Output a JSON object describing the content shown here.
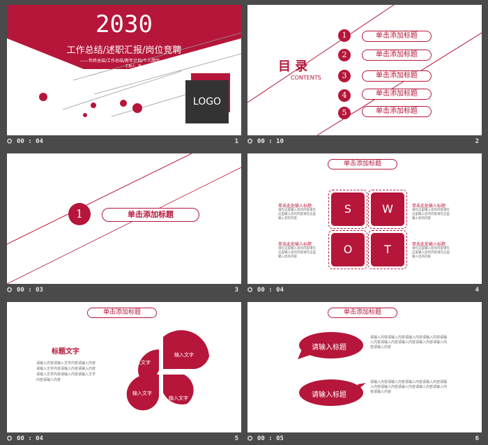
{
  "slides": [
    {
      "number": "1",
      "duration": "00 : 04",
      "year": "2030",
      "title": "工作总结/述职汇报/岗位竞聘",
      "subtitle": "——年终总结/工作总结/新年计划/个人简历——",
      "reporter": "汇报人：第一PPT",
      "logo": "LOGO"
    },
    {
      "number": "2",
      "duration": "00 : 10",
      "heading": "目 录",
      "heading_en": "CONTENTS",
      "items": [
        {
          "num": "1",
          "label": "单击添加标题"
        },
        {
          "num": "2",
          "label": "单击添加标题"
        },
        {
          "num": "3",
          "label": "单击添加标题"
        },
        {
          "num": "4",
          "label": "单击添加标题"
        },
        {
          "num": "5",
          "label": "单击添加标题"
        }
      ]
    },
    {
      "number": "3",
      "duration": "00 : 03",
      "section_num": "1",
      "section_title": "单击添加标题"
    },
    {
      "number": "4",
      "duration": "00 : 04",
      "title": "单击添加标题",
      "letters": [
        "S",
        "W",
        "O",
        "T"
      ],
      "blocks": [
        {
          "head": "单击此处输入标题",
          "body": "请在这里输入您的内容请在这里输入您的内容请在这里输入您的内容"
        },
        {
          "head": "单击此处输入标题",
          "body": "请在这里输入您的内容请在这里输入您的内容请在这里输入您的内容"
        },
        {
          "head": "单击此处输入标题",
          "body": "请在这里输入您的内容请在这里输入您的内容请在这里输入您的内容"
        },
        {
          "head": "单击此处输入标题",
          "body": "请在这里输入您的内容请在这里输入您的内容请在这里输入您的内容"
        }
      ]
    },
    {
      "number": "5",
      "duration": "00 : 04",
      "title": "单击添加标题",
      "text_title": "标题文字",
      "text_body": "请输入内容请输入文字内容请输入内容请输入文字内容请输入内容请输入内容请输入文字内容请输入内容请输入文字内容请输入内容",
      "petals": [
        "输入文字",
        "输入文字",
        "输入文字",
        "输入文字"
      ]
    },
    {
      "number": "6",
      "duration": "00 : 05",
      "title": "单击添加标题",
      "bubble1": "请输入标题",
      "bubble2": "请输入标题",
      "para1": "请输入内容请输入内容请输入内容请输入内容请输入内容请输入内容请输入内容请输入内容请输入内容请输入内容",
      "para2": "请输入内容请输入内容请输入内容请输入内容请输入内容请输入内容请输入内容请输入内容请输入内容请输入内容"
    }
  ],
  "colors": {
    "accent": "#b5163a",
    "dark": "#333333",
    "background": "#4a4a4a"
  },
  "icons": {
    "clock": "clock-icon"
  }
}
